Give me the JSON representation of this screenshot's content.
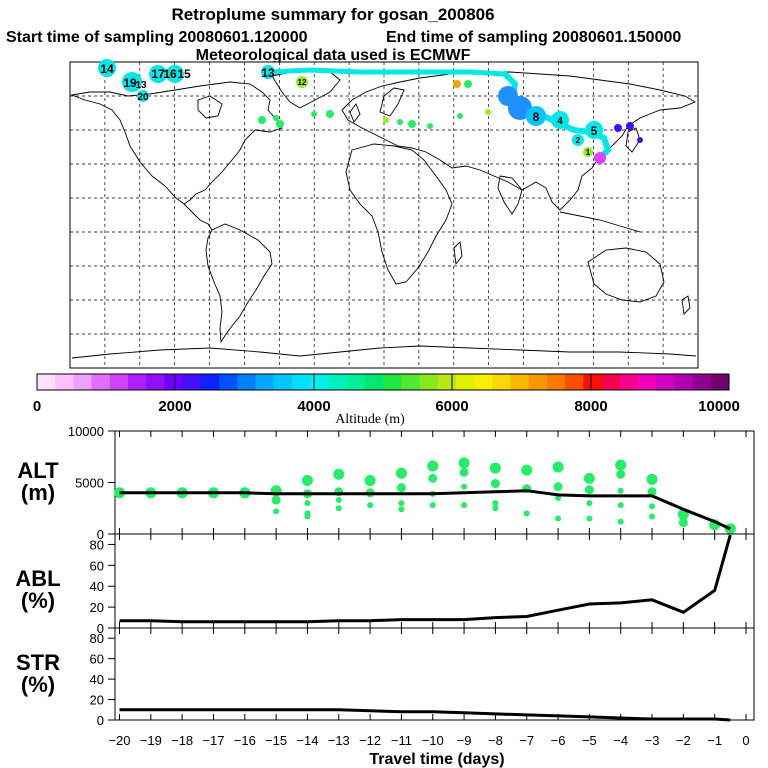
{
  "title": {
    "line1": "Retroplume summary for gosan_200806",
    "start": "Start time of sampling 20080601.120000",
    "end": "End time of sampling 20080601.150000",
    "met": "Meteorological data used is ECMWF"
  },
  "map": {
    "day_labels": [
      {
        "text": "14",
        "size": "big"
      },
      {
        "text": "19",
        "size": "big"
      },
      {
        "text": "13",
        "size": "med"
      },
      {
        "text": "17",
        "size": "big"
      },
      {
        "text": "16",
        "size": "big"
      },
      {
        "text": "15",
        "size": "big"
      },
      {
        "text": "20",
        "size": "med"
      },
      {
        "text": "13",
        "size": "big"
      },
      {
        "text": "12",
        "size": "small"
      },
      {
        "text": "5",
        "size": "big"
      },
      {
        "text": "8",
        "size": "big"
      },
      {
        "text": "4",
        "size": "med"
      },
      {
        "text": "2",
        "size": "small"
      },
      {
        "text": "1",
        "size": "small"
      }
    ],
    "colors": {
      "cyan": "#00e8e8",
      "green": "#22ee66",
      "lime": "#99ee22",
      "blue": "#1e90ff",
      "magenta": "#dd44ff"
    }
  },
  "colorbar": {
    "colors": [
      "#ffe0ff",
      "#ffc0ff",
      "#f0a0ff",
      "#e070ff",
      "#d040ff",
      "#b020ff",
      "#9010ff",
      "#7000ff",
      "#4010ff",
      "#1020ff",
      "#0050ff",
      "#0080ff",
      "#00a8ff",
      "#00c8ff",
      "#00e0ff",
      "#00f0ee",
      "#00f0c0",
      "#00f098",
      "#00e870",
      "#20e840",
      "#50e830",
      "#88e820",
      "#b8e810",
      "#e0f000",
      "#f8f000",
      "#f8d800",
      "#f8b800",
      "#f89800",
      "#f87800",
      "#f85000",
      "#f81000",
      "#f80050",
      "#f80090",
      "#f000b8",
      "#d000c0",
      "#b000b0",
      "#900090",
      "#700070"
    ],
    "ticks": [
      "0",
      "2000",
      "4000",
      "6000",
      "8000",
      "10000"
    ],
    "label": "Altitude (m)"
  },
  "chart_data": [
    {
      "type": "line",
      "name": "ALT",
      "ylabel": "ALT (m)",
      "ylabel_line1": "ALT",
      "ylabel_line2": "(m)",
      "ylim": [
        0,
        10000
      ],
      "yticks": [
        "0",
        "5000",
        "10000"
      ],
      "x": [
        -20,
        -19,
        -18,
        -17,
        -16,
        -15,
        -14,
        -13,
        -12,
        -11,
        -10,
        -9,
        -8,
        -7,
        -6,
        -5,
        -4,
        -3,
        -2,
        -1,
        -0.5
      ],
      "values": [
        4000,
        4000,
        4000,
        4000,
        4000,
        3900,
        3900,
        3900,
        3900,
        3900,
        3900,
        4000,
        4100,
        4200,
        3800,
        3700,
        3700,
        3700,
        2400,
        1200,
        500
      ],
      "clusters": [
        {
          "x": -20,
          "y": [
            4000
          ]
        },
        {
          "x": -19,
          "y": [
            4000
          ]
        },
        {
          "x": -18,
          "y": [
            4000
          ]
        },
        {
          "x": -17,
          "y": [
            4000
          ]
        },
        {
          "x": -16,
          "y": [
            4000
          ]
        },
        {
          "x": -15,
          "y": [
            4200,
            3300,
            2200
          ]
        },
        {
          "x": -14,
          "y": [
            5200,
            3900,
            3000,
            2000,
            1700
          ]
        },
        {
          "x": -13,
          "y": [
            5800,
            4100,
            3300,
            2500
          ]
        },
        {
          "x": -12,
          "y": [
            5200,
            4000,
            2800
          ]
        },
        {
          "x": -11,
          "y": [
            5900,
            4500,
            3000,
            2400
          ]
        },
        {
          "x": -10,
          "y": [
            6600,
            5400,
            3900,
            2800
          ]
        },
        {
          "x": -9,
          "y": [
            6900,
            6000,
            4600,
            2800
          ]
        },
        {
          "x": -8,
          "y": [
            6400,
            4900,
            3000,
            2500
          ]
        },
        {
          "x": -7,
          "y": [
            6200,
            4400,
            2000
          ]
        },
        {
          "x": -6,
          "y": [
            6500,
            4600,
            3500,
            1500
          ]
        },
        {
          "x": -5,
          "y": [
            5400,
            4300,
            3000,
            1500
          ]
        },
        {
          "x": -4,
          "y": [
            6700,
            5800,
            4200,
            2800,
            1200
          ]
        },
        {
          "x": -3,
          "y": [
            5300,
            4100,
            2700,
            1700
          ]
        },
        {
          "x": -2,
          "y": [
            1900,
            1100
          ]
        },
        {
          "x": -1,
          "y": [
            900
          ]
        },
        {
          "x": -0.5,
          "y": [
            500
          ]
        }
      ]
    },
    {
      "type": "line",
      "name": "ABL",
      "ylabel": "ABL (%)",
      "ylabel_line1": "ABL",
      "ylabel_line2": "(%)",
      "ylim": [
        0,
        90
      ],
      "yticks": [
        "0",
        "20",
        "40",
        "60",
        "80"
      ],
      "x": [
        -20,
        -19,
        -18,
        -17,
        -16,
        -15,
        -14,
        -13,
        -12,
        -11,
        -10,
        -9,
        -8,
        -7,
        -6,
        -5,
        -4,
        -3,
        -2,
        -1,
        -0.5
      ],
      "values": [
        7,
        7,
        6,
        6,
        6,
        6,
        6,
        7,
        7,
        8,
        8,
        8,
        10,
        11,
        17,
        23,
        24,
        27,
        15,
        36,
        89
      ]
    },
    {
      "type": "line",
      "name": "STR",
      "ylabel": "STR (%)",
      "ylabel_line1": "STR",
      "ylabel_line2": "(%)",
      "ylim": [
        0,
        90
      ],
      "yticks": [
        "0",
        "20",
        "40",
        "60",
        "80"
      ],
      "x": [
        -20,
        -19,
        -18,
        -17,
        -16,
        -15,
        -14,
        -13,
        -12,
        -11,
        -10,
        -9,
        -8,
        -7,
        -6,
        -5,
        -4,
        -3,
        -2,
        -1,
        -0.5
      ],
      "values": [
        10,
        10,
        10,
        10,
        10,
        10,
        10,
        10,
        9,
        8,
        8,
        7,
        6,
        5,
        4,
        3,
        2,
        1,
        1,
        1,
        0
      ],
      "xlabel": "Travel time (days)",
      "xticks": [
        "−20",
        "−19",
        "−18",
        "−17",
        "−16",
        "−15",
        "−14",
        "−13",
        "−12",
        "−11",
        "−10",
        "−9",
        "−8",
        "−7",
        "−6",
        "−5",
        "−4",
        "−3",
        "−2",
        "−1",
        "0"
      ]
    }
  ]
}
